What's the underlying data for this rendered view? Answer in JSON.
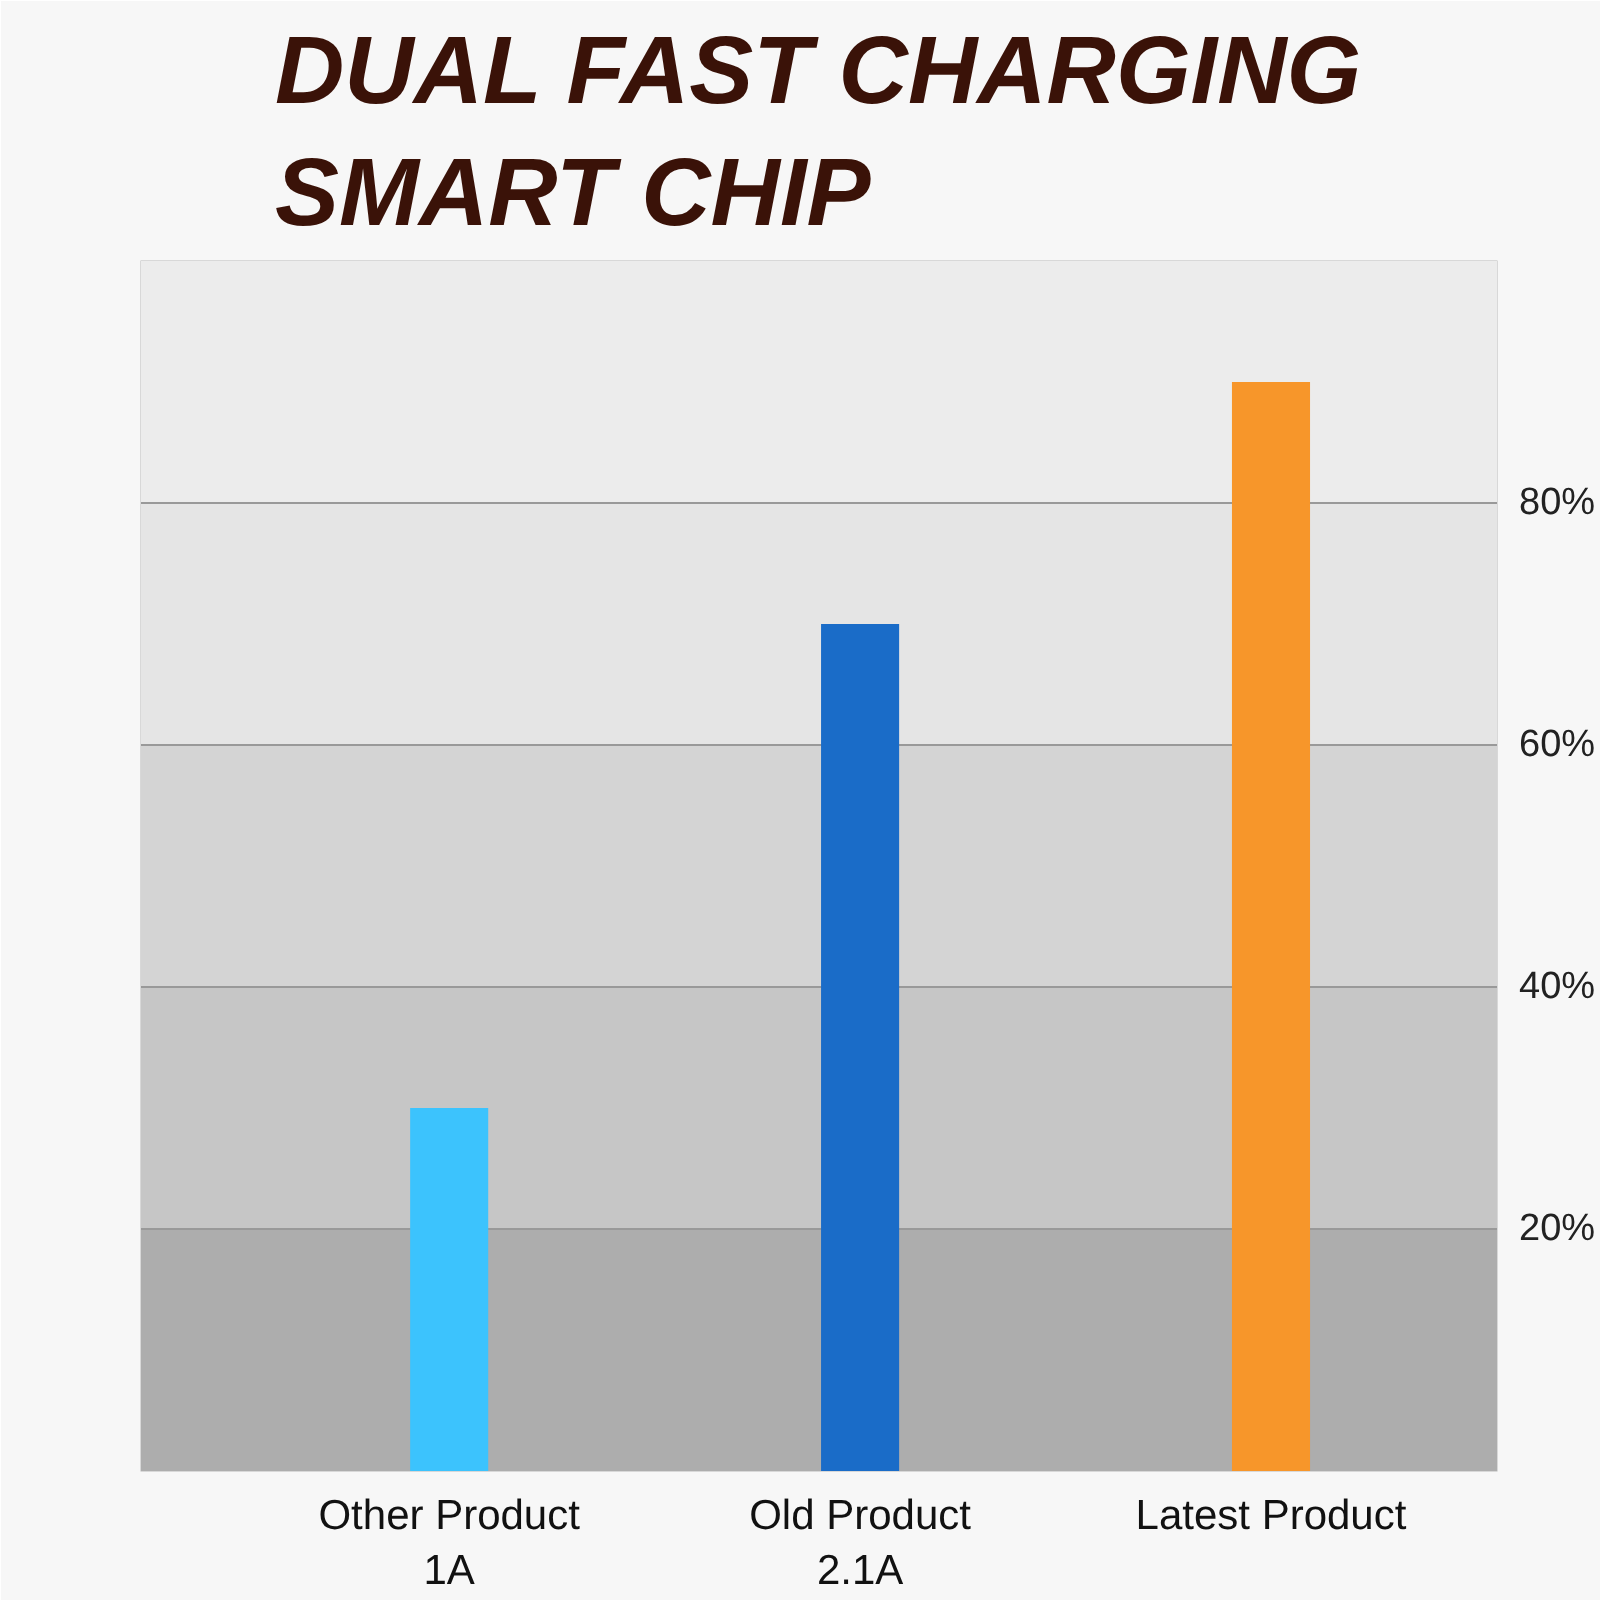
{
  "chart_data": {
    "type": "bar",
    "title": "DUAL FAST CHARGING SMART CHIP",
    "categories": [
      "Other Product\n1A",
      "Old Product\n2.1A",
      "Latest Product"
    ],
    "values": [
      30,
      70,
      90
    ],
    "colors": [
      "#3cc3fd",
      "#1a6cc8",
      "#f7962a"
    ],
    "ylim": [
      0,
      100
    ],
    "yticks": [
      {
        "value": 20,
        "label": "20%"
      },
      {
        "value": 40,
        "label": "40%"
      },
      {
        "value": 60,
        "label": "60%"
      },
      {
        "value": 80,
        "label": "80%"
      }
    ],
    "grid": "y",
    "bands": [
      {
        "axis": "y",
        "from": 0,
        "to": 20,
        "color": "#adadad"
      },
      {
        "axis": "y",
        "from": 20,
        "to": 40,
        "color": "#c6c6c6"
      },
      {
        "axis": "y",
        "from": 40,
        "to": 60,
        "color": "#d4d4d4"
      },
      {
        "axis": "y",
        "from": 60,
        "to": 80,
        "color": "#e5e5e5"
      },
      {
        "axis": "y",
        "from": 80,
        "to": 100,
        "color": "#ececec"
      }
    ]
  }
}
